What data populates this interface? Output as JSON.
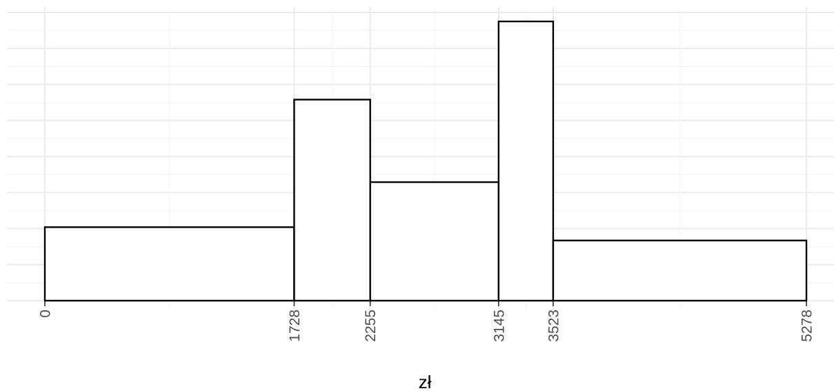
{
  "chart_data": {
    "type": "bar",
    "subtype": "histogram",
    "title": "",
    "xlabel": "zł",
    "ylabel": "",
    "bins": [
      {
        "start": 0,
        "end": 1728,
        "height": 2.04
      },
      {
        "start": 1728,
        "end": 2255,
        "height": 5.58
      },
      {
        "start": 2255,
        "end": 3145,
        "height": 3.29
      },
      {
        "start": 3145,
        "end": 3523,
        "height": 7.75
      },
      {
        "start": 3523,
        "end": 5278,
        "height": 1.67
      }
    ],
    "x_tick_labels": [
      "0",
      "1728",
      "2255",
      "3145",
      "3523",
      "5278"
    ],
    "x_ticks": [
      0,
      1728,
      2255,
      3145,
      3523,
      5278
    ],
    "xlim": [
      0,
      5278
    ],
    "ylim": [
      0,
      8
    ],
    "y_tick_labels_shown": false,
    "grid": true,
    "legend": "none",
    "colors": {
      "bar_fill": "#ffffff",
      "bar_stroke": "#000000",
      "grid_major": "#ebebeb",
      "grid_minor": "#f3f3f3",
      "tick_text": "#4d4d4d",
      "axis_title_text": "#000000"
    }
  }
}
